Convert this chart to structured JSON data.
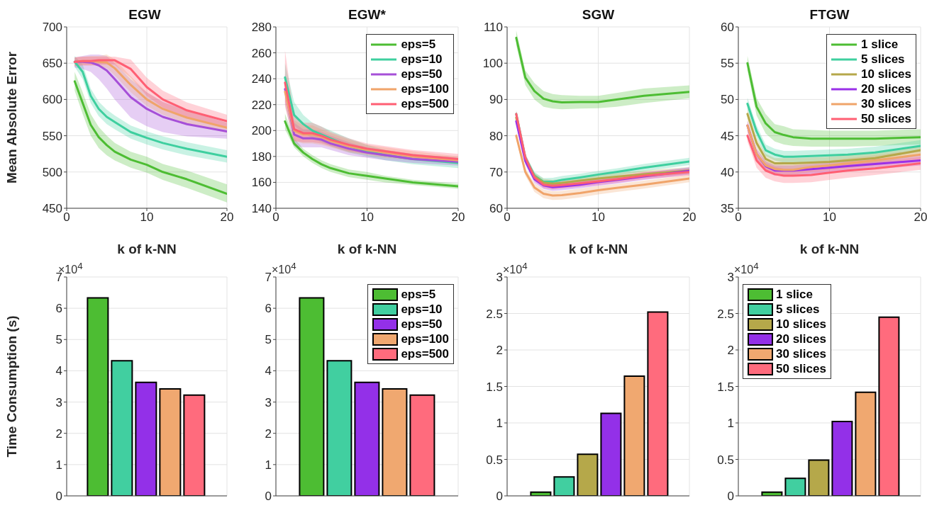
{
  "chart_data": [
    {
      "type": "line",
      "title": "EGW",
      "xlabel": "k of k-NN",
      "ylabel": "Mean Absolute Error",
      "x": [
        1,
        2,
        3,
        4,
        5,
        6,
        8,
        10,
        12,
        15,
        20
      ],
      "xlim": [
        0,
        20
      ],
      "xticks": [
        0,
        10,
        20
      ],
      "ylim": [
        450,
        700
      ],
      "yticks": [
        450,
        500,
        550,
        600,
        650,
        700
      ],
      "grid": true,
      "series": [
        {
          "color": "#4dbd33",
          "values": [
            625,
            595,
            565,
            548,
            537,
            528,
            517,
            510,
            500,
            490,
            470
          ],
          "lower": [
            612,
            580,
            550,
            533,
            523,
            516,
            506,
            499,
            489,
            478,
            458
          ],
          "upper": [
            638,
            610,
            580,
            562,
            550,
            540,
            528,
            521,
            511,
            502,
            483
          ]
        },
        {
          "color": "#3ecf9f",
          "values": [
            652,
            638,
            605,
            587,
            576,
            569,
            555,
            547,
            540,
            532,
            521
          ],
          "lower": [
            645,
            628,
            595,
            577,
            566,
            559,
            546,
            538,
            531,
            523,
            513
          ],
          "upper": [
            660,
            648,
            615,
            597,
            586,
            578,
            564,
            556,
            549,
            541,
            530
          ]
        },
        {
          "color": "#a64fd8",
          "values": [
            652,
            652,
            651,
            647,
            640,
            628,
            603,
            587,
            576,
            566,
            556
          ],
          "lower": [
            644,
            642,
            638,
            628,
            615,
            600,
            575,
            563,
            555,
            549,
            546
          ],
          "upper": [
            658,
            660,
            662,
            662,
            660,
            650,
            628,
            610,
            597,
            585,
            568
          ]
        },
        {
          "color": "#f0a46a",
          "values": [
            652,
            653,
            653,
            652,
            651,
            643,
            620,
            600,
            587,
            575,
            561
          ],
          "lower": [
            646,
            647,
            647,
            646,
            643,
            633,
            610,
            591,
            579,
            567,
            554
          ],
          "upper": [
            658,
            659,
            660,
            660,
            662,
            655,
            632,
            610,
            596,
            584,
            568
          ]
        },
        {
          "color": "#ff5f73",
          "values": [
            652,
            653,
            653,
            654,
            654,
            654,
            642,
            617,
            600,
            585,
            570
          ],
          "lower": [
            646,
            647,
            647,
            648,
            648,
            648,
            630,
            605,
            589,
            575,
            562
          ],
          "upper": [
            658,
            659,
            659,
            659,
            659,
            659,
            655,
            630,
            612,
            596,
            579
          ]
        }
      ]
    },
    {
      "type": "line",
      "title": "EGW*",
      "xlabel": "k of k-NN",
      "x": [
        1,
        2,
        3,
        4,
        5,
        6,
        8,
        10,
        12,
        15,
        20
      ],
      "xlim": [
        0,
        20
      ],
      "xticks": [
        0,
        10,
        20
      ],
      "ylim": [
        140,
        280
      ],
      "yticks": [
        140,
        160,
        180,
        200,
        220,
        240,
        260,
        280
      ],
      "grid": true,
      "legend": "top right",
      "series": [
        {
          "name": "eps=5",
          "color": "#4dbd33",
          "values": [
            207,
            190,
            183,
            178,
            174,
            171,
            167,
            165,
            163,
            160,
            157
          ],
          "lower": [
            201,
            187,
            180,
            175,
            171,
            168,
            164,
            162,
            160,
            158,
            155
          ],
          "upper": [
            213,
            194,
            186,
            181,
            177,
            174,
            170,
            168,
            165,
            162,
            159
          ]
        },
        {
          "name": "eps=10",
          "color": "#3ecf9f",
          "values": [
            241,
            212,
            205,
            200,
            197,
            194,
            188,
            184,
            181,
            178,
            175
          ],
          "lower": [
            230,
            204,
            198,
            194,
            191,
            188,
            183,
            180,
            177,
            174,
            171
          ],
          "upper": [
            252,
            222,
            212,
            206,
            203,
            200,
            194,
            189,
            185,
            182,
            179
          ]
        },
        {
          "name": "eps=50",
          "color": "#a64fd8",
          "values": [
            232,
            197,
            194,
            194,
            193,
            190,
            186,
            183,
            181,
            178,
            176
          ],
          "lower": [
            220,
            188,
            187,
            187,
            187,
            185,
            181,
            179,
            177,
            175,
            173
          ],
          "upper": [
            244,
            206,
            201,
            201,
            199,
            196,
            191,
            187,
            185,
            182,
            179
          ]
        },
        {
          "name": "eps=100",
          "color": "#f0a46a",
          "values": [
            230,
            200,
            197,
            197,
            195,
            192,
            188,
            185,
            183,
            180,
            177
          ],
          "lower": [
            218,
            192,
            190,
            190,
            189,
            187,
            183,
            181,
            179,
            177,
            174
          ],
          "upper": [
            242,
            208,
            204,
            204,
            201,
            198,
            193,
            189,
            187,
            184,
            180
          ]
        },
        {
          "name": "eps=500",
          "color": "#ff5f73",
          "values": [
            237,
            201,
            198,
            198,
            196,
            193,
            189,
            186,
            184,
            181,
            178
          ],
          "lower": [
            222,
            192,
            191,
            191,
            190,
            188,
            184,
            182,
            180,
            178,
            175
          ],
          "upper": [
            262,
            211,
            206,
            206,
            203,
            199,
            194,
            190,
            188,
            185,
            182
          ]
        }
      ]
    },
    {
      "type": "line",
      "title": "SGW",
      "xlabel": "k of k-NN",
      "x": [
        1,
        2,
        3,
        4,
        5,
        6,
        8,
        10,
        12,
        15,
        20
      ],
      "xlim": [
        0,
        20
      ],
      "xticks": [
        0,
        10,
        20
      ],
      "ylim": [
        60,
        110
      ],
      "yticks": [
        60,
        70,
        80,
        90,
        100,
        110
      ],
      "grid": true,
      "series": [
        {
          "color": "#4dbd33",
          "values": [
            107,
            96,
            92.3,
            90.2,
            89.5,
            89.2,
            89.3,
            89.3,
            90,
            91,
            92.1
          ],
          "lower": [
            105,
            94,
            90,
            88,
            87.5,
            87.3,
            87.5,
            87.6,
            88,
            89,
            90.3
          ],
          "upper": [
            109,
            98,
            94.5,
            92.3,
            91.5,
            91.2,
            91,
            91,
            91.8,
            93,
            93.9
          ]
        },
        {
          "color": "#3ecf9f",
          "values": [
            86,
            74,
            69,
            67.3,
            67.3,
            67.8,
            68.5,
            69.3,
            70,
            71.2,
            72.9
          ],
          "lower": [
            85,
            73,
            68,
            66.3,
            66.2,
            66.7,
            67.5,
            68.3,
            69,
            70.2,
            71.9
          ],
          "upper": [
            87,
            75,
            70,
            68.3,
            68.4,
            68.9,
            69.5,
            70.3,
            71,
            72.2,
            73.9
          ]
        },
        {
          "color": "#b5a84a",
          "values": [
            85,
            73.5,
            68.8,
            67.1,
            66.8,
            67,
            67.6,
            68.2,
            68.7,
            69.4,
            70.4
          ],
          "lower": [
            84,
            72.5,
            67.8,
            66.1,
            65.8,
            66,
            66.6,
            67.2,
            67.7,
            68.4,
            69.4
          ],
          "upper": [
            86,
            74.5,
            69.8,
            68.1,
            67.8,
            68,
            68.6,
            69.2,
            69.7,
            70.4,
            71.4
          ]
        },
        {
          "color": "#9a30e8",
          "values": [
            84,
            73,
            68,
            66.3,
            65.8,
            66,
            66.5,
            67.2,
            67.8,
            68.8,
            70.3
          ],
          "lower": [
            83,
            72,
            67,
            65.3,
            64.8,
            65,
            65.5,
            66.2,
            66.8,
            67.8,
            69.3
          ],
          "upper": [
            85,
            74,
            69,
            67.3,
            66.8,
            67,
            67.5,
            68.2,
            68.8,
            69.8,
            71.3
          ]
        },
        {
          "color": "#f0a46a",
          "values": [
            80,
            70,
            65.7,
            64,
            63.5,
            63.6,
            64.2,
            65,
            65.6,
            66.5,
            68.2
          ],
          "lower": [
            79,
            69,
            64.5,
            62.8,
            62.3,
            62.4,
            63,
            63.8,
            64.5,
            65.4,
            67.2
          ],
          "upper": [
            81,
            71,
            66.9,
            65.2,
            64.7,
            64.8,
            65.4,
            66.2,
            66.7,
            67.6,
            69.2
          ]
        },
        {
          "color": "#ff5f73",
          "values": [
            86,
            74,
            68.5,
            66.5,
            66.2,
            66.4,
            66.9,
            67.4,
            68,
            69,
            70
          ],
          "lower": [
            85,
            73,
            67.5,
            65.5,
            65.2,
            65.4,
            65.9,
            66.4,
            67,
            68,
            69
          ],
          "upper": [
            87,
            75,
            69.5,
            67.5,
            67.2,
            67.4,
            67.9,
            68.4,
            69,
            70,
            71
          ]
        }
      ]
    },
    {
      "type": "line",
      "title": "FTGW",
      "xlabel": "k of k-NN",
      "x": [
        1,
        2,
        3,
        4,
        5,
        6,
        8,
        10,
        12,
        15,
        20
      ],
      "xlim": [
        0,
        20
      ],
      "xticks": [
        0,
        10,
        20
      ],
      "ylim": [
        35,
        60
      ],
      "yticks": [
        35,
        40,
        45,
        50,
        55,
        60
      ],
      "grid": true,
      "legend": "top right",
      "series": [
        {
          "name": "1 slice",
          "color": "#4dbd33",
          "values": [
            55,
            49,
            46.7,
            45.5,
            45.1,
            44.8,
            44.6,
            44.6,
            44.6,
            44.6,
            44.8
          ],
          "lower": [
            54,
            47.8,
            45.3,
            44.2,
            43.8,
            43.6,
            43.5,
            43.5,
            43.5,
            43.6,
            43.8
          ],
          "upper": [
            56,
            50.2,
            48,
            46.6,
            46.3,
            45.9,
            45.8,
            45.7,
            45.7,
            45.7,
            45.9
          ]
        },
        {
          "name": "5 slices",
          "color": "#3ecf9f",
          "values": [
            49.4,
            45.6,
            43,
            42.4,
            42.1,
            42.1,
            42.2,
            42.3,
            42.4,
            42.7,
            43.6
          ],
          "lower": [
            48.6,
            44.8,
            42.2,
            41.6,
            41.3,
            41.3,
            41.4,
            41.5,
            41.6,
            41.9,
            42.8
          ],
          "upper": [
            50.2,
            46.4,
            43.8,
            43.2,
            42.9,
            42.9,
            43,
            43.1,
            43.2,
            43.5,
            44.4
          ]
        },
        {
          "name": "10 slices",
          "color": "#b5a84a",
          "values": [
            48,
            44,
            41.8,
            41.2,
            41.2,
            41.2,
            41.3,
            41.4,
            41.6,
            41.9,
            43
          ],
          "lower": [
            47.3,
            43.3,
            41.1,
            40.5,
            40.5,
            40.5,
            40.6,
            40.7,
            40.9,
            41.2,
            42.3
          ],
          "upper": [
            48.7,
            44.7,
            42.5,
            41.9,
            41.9,
            41.9,
            42,
            42.1,
            42.3,
            42.6,
            43.7
          ]
        },
        {
          "name": "20 slices",
          "color": "#9a30e8",
          "values": [
            46.4,
            42.5,
            40.8,
            40.2,
            40.2,
            40.2,
            40.4,
            40.6,
            40.8,
            41.1,
            41.6
          ],
          "lower": [
            45.7,
            41.8,
            40.1,
            39.5,
            39.5,
            39.5,
            39.7,
            39.9,
            40.1,
            40.4,
            40.9
          ],
          "upper": [
            47.1,
            43.2,
            41.5,
            40.9,
            40.9,
            40.9,
            41.1,
            41.3,
            41.5,
            41.8,
            42.3
          ]
        },
        {
          "name": "30 slices",
          "color": "#f0a46a",
          "values": [
            46.4,
            42.5,
            40.9,
            40.4,
            40.3,
            40.3,
            40.7,
            40.9,
            41.2,
            41.6,
            42.4
          ],
          "lower": [
            45.7,
            41.8,
            40.2,
            39.7,
            39.6,
            39.6,
            40,
            40.2,
            40.5,
            40.9,
            41.7
          ],
          "upper": [
            47.1,
            43.2,
            41.6,
            41.1,
            41,
            41,
            41.4,
            41.6,
            41.9,
            42.3,
            43.1
          ]
        },
        {
          "name": "50 slices",
          "color": "#ff5f73",
          "values": [
            45,
            41.6,
            40.2,
            39.7,
            39.5,
            39.5,
            39.6,
            39.9,
            40.2,
            40.5,
            41.2
          ],
          "lower": [
            44.2,
            40.6,
            39.2,
            38.7,
            38.5,
            38.5,
            38.6,
            38.9,
            39.2,
            39.6,
            40.3
          ],
          "upper": [
            45.8,
            42.6,
            41.2,
            40.7,
            40.5,
            40.5,
            40.6,
            40.9,
            41.2,
            41.4,
            42.1
          ]
        }
      ]
    },
    {
      "type": "bar",
      "ylabel": "Time Consumption (s)",
      "annotations": [
        "×10$^{4}$"
      ],
      "categories": [
        null
      ],
      "tick_labels": "y",
      "ylim": [
        0,
        7
      ],
      "yticks": [
        0,
        1,
        2,
        3,
        4,
        5,
        6,
        7
      ],
      "grid": true,
      "series": [
        {
          "color": "#4dbd33",
          "values": [
            6.33
          ]
        },
        {
          "color": "#41cfa0",
          "values": [
            4.32
          ]
        },
        {
          "color": "#9330e8",
          "values": [
            3.63
          ]
        },
        {
          "color": "#f0a870",
          "values": [
            3.42
          ]
        },
        {
          "color": "#ff6b7d",
          "values": [
            3.22
          ]
        }
      ]
    },
    {
      "type": "bar",
      "annotations": [
        "×10$^{4}$"
      ],
      "categories": [
        null
      ],
      "tick_labels": "y",
      "ylim": [
        0,
        7
      ],
      "yticks": [
        0,
        1,
        2,
        3,
        4,
        5,
        6,
        7
      ],
      "grid": true,
      "legend": "top right",
      "series": [
        {
          "name": "eps=5",
          "color": "#4dbd33",
          "values": [
            6.33
          ]
        },
        {
          "name": "eps=10",
          "color": "#41cfa0",
          "values": [
            4.32
          ]
        },
        {
          "name": "eps=50",
          "color": "#9330e8",
          "values": [
            3.63
          ]
        },
        {
          "name": "eps=100",
          "color": "#f0a870",
          "values": [
            3.42
          ]
        },
        {
          "name": "eps=500",
          "color": "#ff6b7d",
          "values": [
            3.22
          ]
        }
      ]
    },
    {
      "type": "bar",
      "annotations": [
        "×10$^{4}$"
      ],
      "categories": [
        null
      ],
      "tick_labels": "y",
      "ylim": [
        0,
        3
      ],
      "yticks": [
        0,
        0.5,
        1,
        1.5,
        2,
        2.5,
        3
      ],
      "grid": true,
      "series": [
        {
          "color": "#4dbd33",
          "values": [
            0.05
          ]
        },
        {
          "color": "#41cfa0",
          "values": [
            0.26
          ]
        },
        {
          "color": "#b5a84a",
          "values": [
            0.57
          ]
        },
        {
          "color": "#9330e8",
          "values": [
            1.13
          ]
        },
        {
          "color": "#f0a870",
          "values": [
            1.64
          ]
        },
        {
          "color": "#ff6b7d",
          "values": [
            2.52
          ]
        }
      ]
    },
    {
      "type": "bar",
      "annotations": [
        "×10$^{4}$"
      ],
      "categories": [
        null
      ],
      "tick_labels": "y",
      "ylim": [
        0,
        3
      ],
      "yticks": [
        0,
        0.5,
        1,
        1.5,
        2,
        2.5,
        3
      ],
      "grid": true,
      "legend": "top left",
      "series": [
        {
          "name": "1 slice",
          "color": "#4dbd33",
          "values": [
            0.05
          ]
        },
        {
          "name": "5 slices",
          "color": "#41cfa0",
          "values": [
            0.24
          ]
        },
        {
          "name": "10 slices",
          "color": "#b5a84a",
          "values": [
            0.49
          ]
        },
        {
          "name": "20 slices",
          "color": "#9330e8",
          "values": [
            1.02
          ]
        },
        {
          "name": "30 slices",
          "color": "#f0a870",
          "values": [
            1.42
          ]
        },
        {
          "name": "50 slices",
          "color": "#ff6b7d",
          "values": [
            2.45
          ]
        }
      ]
    }
  ]
}
